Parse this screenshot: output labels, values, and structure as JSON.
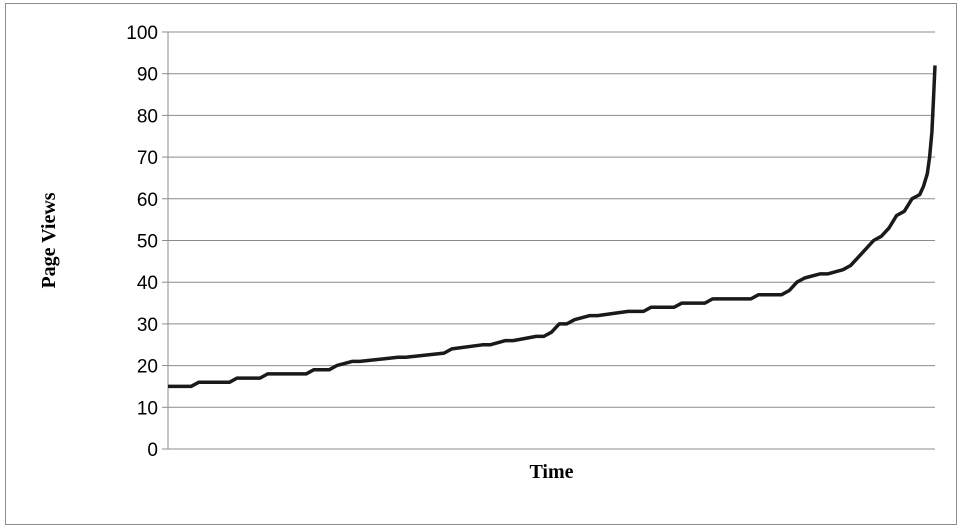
{
  "chart_data": {
    "type": "line",
    "title": "",
    "xlabel": "Time",
    "ylabel": "Page Views",
    "ylim": [
      0,
      100
    ],
    "yticks": [
      0,
      10,
      20,
      30,
      40,
      50,
      60,
      70,
      80,
      90,
      100
    ],
    "grid": true,
    "legend": "none",
    "series": [
      {
        "color": "#1a1a1a",
        "x": [
          0,
          3,
          4,
          8,
          9,
          12,
          13,
          18,
          19,
          21,
          22,
          24,
          25,
          30,
          31,
          36,
          37,
          41,
          42,
          44,
          45,
          48,
          49,
          50,
          51,
          52,
          53,
          55,
          56,
          60,
          61,
          62,
          63,
          66,
          67,
          70,
          71,
          76,
          77,
          80,
          81,
          82,
          83,
          85,
          86,
          88,
          89,
          90,
          91,
          92,
          93,
          94,
          95,
          96,
          97,
          98,
          98.5,
          99,
          99.3,
          99.6,
          99.8,
          100
        ],
        "y": [
          15,
          15,
          16,
          16,
          17,
          17,
          18,
          18,
          19,
          19,
          20,
          21,
          21,
          22,
          22,
          23,
          24,
          25,
          25,
          26,
          26,
          27,
          27,
          28,
          30,
          30,
          31,
          32,
          32,
          33,
          33,
          33,
          34,
          34,
          35,
          35,
          36,
          36,
          37,
          37,
          38,
          40,
          41,
          42,
          42,
          43,
          44,
          46,
          48,
          50,
          51,
          53,
          56,
          57,
          60,
          61,
          63,
          66,
          70,
          76,
          84,
          92
        ]
      }
    ]
  }
}
